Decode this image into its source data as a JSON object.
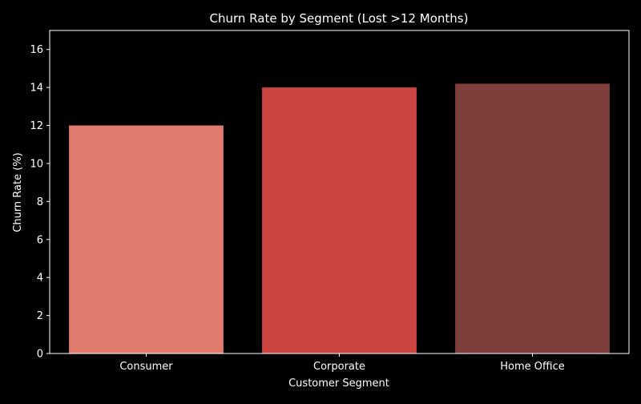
{
  "chart_data": {
    "type": "bar",
    "title": "Churn Rate by Segment (Lost >12 Months)",
    "xlabel": "Customer Segment",
    "ylabel": "Churn Rate (%)",
    "categories": [
      "Consumer",
      "Corporate",
      "Home Office"
    ],
    "values": [
      12.0,
      14.0,
      14.2
    ],
    "bar_colors": [
      "#e07a6c",
      "#cc4540",
      "#7e3e3b"
    ],
    "ylim": [
      0,
      17
    ],
    "yticks": [
      0,
      2,
      4,
      6,
      8,
      10,
      12,
      14,
      16
    ],
    "grid": false,
    "legend": "none"
  },
  "colors": {
    "background": "#000000",
    "axes": "#ffffff",
    "text": "#ffffff"
  }
}
